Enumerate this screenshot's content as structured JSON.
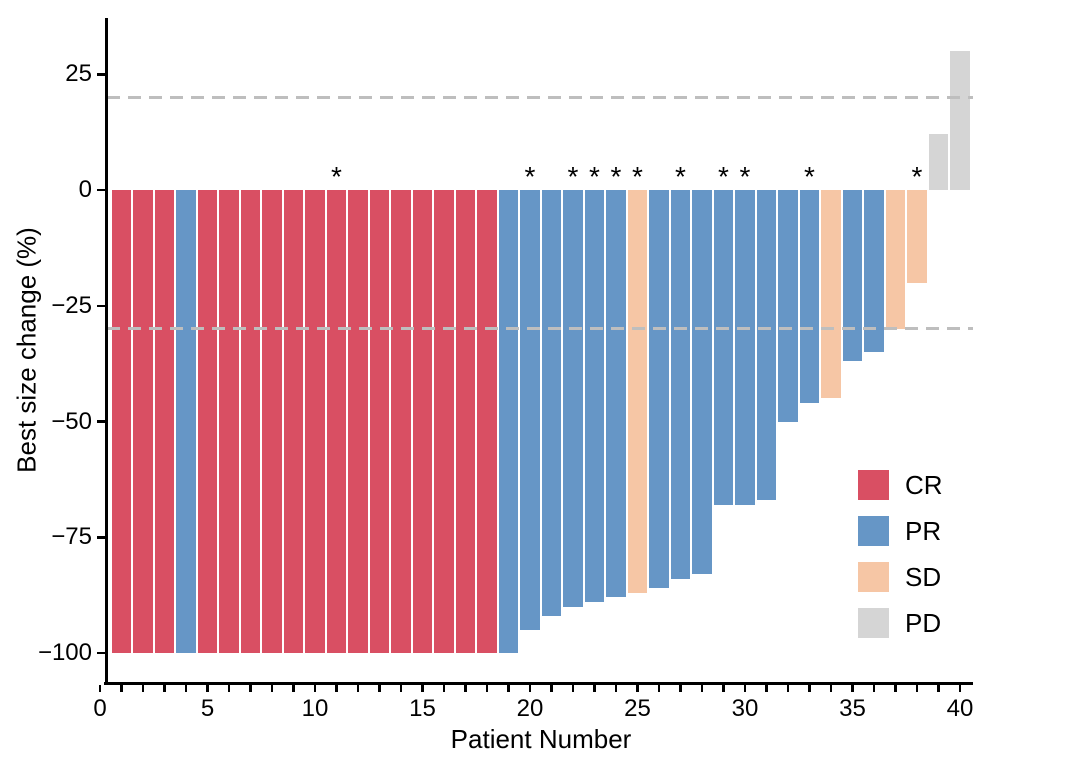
{
  "chart": {
    "y_axis": {
      "title": "Best size change (%)",
      "ticks": [
        25,
        0,
        -25,
        -50,
        -75,
        -100
      ]
    },
    "x_axis": {
      "title": "Patient Number",
      "labeled_ticks": [
        0,
        5,
        10,
        15,
        20,
        25,
        30,
        35,
        40
      ],
      "minor_tick_every": 1,
      "minor_tick_max": 40
    }
  },
  "legend": {
    "items": [
      {
        "label": "CR",
        "color": "#D94F63"
      },
      {
        "label": "PR",
        "color": "#6696C6"
      },
      {
        "label": "SD",
        "color": "#F6C6A5"
      },
      {
        "label": "PD",
        "color": "#D5D5D5"
      }
    ]
  },
  "chart_data": {
    "type": "bar",
    "subtype": "waterfall",
    "title": "",
    "xlabel": "Patient Number",
    "ylabel": "Best size change (%)",
    "xlim": [
      0,
      41
    ],
    "ylim": [
      -107,
      37
    ],
    "grid": false,
    "legend_position": "right-inside",
    "asterisk_symbol": "*",
    "reference_lines": {
      "y": [
        20,
        -30
      ],
      "style": "dashed",
      "color": "#BEBEBE"
    },
    "series_colors": {
      "CR": "#D94F63",
      "PR": "#6696C6",
      "SD": "#F6C6A5",
      "PD": "#D5D5D5"
    },
    "asterisk_patients": [
      11,
      20,
      22,
      23,
      24,
      25,
      27,
      29,
      30,
      33,
      38
    ],
    "bars": [
      {
        "patient": 1,
        "value": -100,
        "response": "CR",
        "asterisk": false
      },
      {
        "patient": 2,
        "value": -100,
        "response": "CR",
        "asterisk": false
      },
      {
        "patient": 3,
        "value": -100,
        "response": "CR",
        "asterisk": false
      },
      {
        "patient": 4,
        "value": -100,
        "response": "PR",
        "asterisk": false
      },
      {
        "patient": 5,
        "value": -100,
        "response": "CR",
        "asterisk": false
      },
      {
        "patient": 6,
        "value": -100,
        "response": "CR",
        "asterisk": false
      },
      {
        "patient": 7,
        "value": -100,
        "response": "CR",
        "asterisk": false
      },
      {
        "patient": 8,
        "value": -100,
        "response": "CR",
        "asterisk": false
      },
      {
        "patient": 9,
        "value": -100,
        "response": "CR",
        "asterisk": false
      },
      {
        "patient": 10,
        "value": -100,
        "response": "CR",
        "asterisk": false
      },
      {
        "patient": 11,
        "value": -100,
        "response": "CR",
        "asterisk": true
      },
      {
        "patient": 12,
        "value": -100,
        "response": "CR",
        "asterisk": false
      },
      {
        "patient": 13,
        "value": -100,
        "response": "CR",
        "asterisk": false
      },
      {
        "patient": 14,
        "value": -100,
        "response": "CR",
        "asterisk": false
      },
      {
        "patient": 15,
        "value": -100,
        "response": "CR",
        "asterisk": false
      },
      {
        "patient": 16,
        "value": -100,
        "response": "CR",
        "asterisk": false
      },
      {
        "patient": 17,
        "value": -100,
        "response": "CR",
        "asterisk": false
      },
      {
        "patient": 18,
        "value": -100,
        "response": "CR",
        "asterisk": false
      },
      {
        "patient": 19,
        "value": -100,
        "response": "PR",
        "asterisk": false
      },
      {
        "patient": 20,
        "value": -95,
        "response": "PR",
        "asterisk": true
      },
      {
        "patient": 21,
        "value": -92,
        "response": "PR",
        "asterisk": false
      },
      {
        "patient": 22,
        "value": -90,
        "response": "PR",
        "asterisk": true
      },
      {
        "patient": 23,
        "value": -89,
        "response": "PR",
        "asterisk": true
      },
      {
        "patient": 24,
        "value": -88,
        "response": "PR",
        "asterisk": true
      },
      {
        "patient": 25,
        "value": -87,
        "response": "SD",
        "asterisk": true
      },
      {
        "patient": 26,
        "value": -86,
        "response": "PR",
        "asterisk": false
      },
      {
        "patient": 27,
        "value": -84,
        "response": "PR",
        "asterisk": true
      },
      {
        "patient": 28,
        "value": -83,
        "response": "PR",
        "asterisk": false
      },
      {
        "patient": 29,
        "value": -68,
        "response": "PR",
        "asterisk": true
      },
      {
        "patient": 30,
        "value": -68,
        "response": "PR",
        "asterisk": true
      },
      {
        "patient": 31,
        "value": -67,
        "response": "PR",
        "asterisk": false
      },
      {
        "patient": 32,
        "value": -50,
        "response": "PR",
        "asterisk": false
      },
      {
        "patient": 33,
        "value": -46,
        "response": "PR",
        "asterisk": true
      },
      {
        "patient": 34,
        "value": -45,
        "response": "SD",
        "asterisk": false
      },
      {
        "patient": 35,
        "value": -37,
        "response": "PR",
        "asterisk": false
      },
      {
        "patient": 36,
        "value": -35,
        "response": "PR",
        "asterisk": false
      },
      {
        "patient": 37,
        "value": -30,
        "response": "SD",
        "asterisk": false
      },
      {
        "patient": 38,
        "value": -20,
        "response": "SD",
        "asterisk": true
      },
      {
        "patient": 39,
        "value": 12,
        "response": "PD",
        "asterisk": false
      },
      {
        "patient": 40,
        "value": 30,
        "response": "PD",
        "asterisk": false
      }
    ]
  }
}
